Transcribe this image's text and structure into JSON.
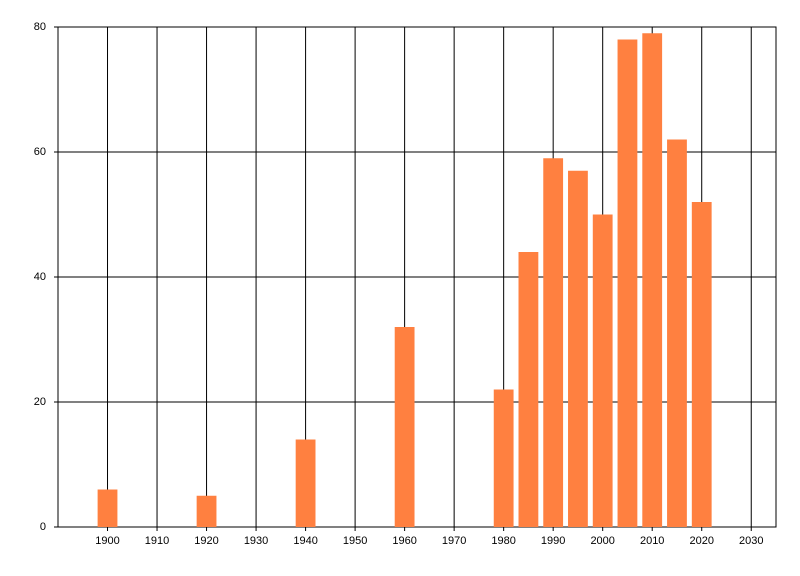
{
  "chart_data": {
    "type": "bar",
    "x": [
      1900,
      1920,
      1940,
      1960,
      1980,
      1985,
      1990,
      1995,
      2000,
      2005,
      2010,
      2015,
      2020
    ],
    "values": [
      6,
      5,
      14,
      32,
      22,
      44,
      59,
      57,
      50,
      78,
      79,
      62,
      52
    ],
    "color": "#ff8040",
    "xlim": [
      1890,
      2035
    ],
    "xticks": [
      1900,
      1910,
      1920,
      1930,
      1940,
      1950,
      1960,
      1970,
      1980,
      1990,
      2000,
      2010,
      2020,
      2030
    ],
    "ylim": [
      0,
      80
    ],
    "yticks": [
      0,
      20,
      40,
      60,
      80
    ],
    "grid": true
  }
}
